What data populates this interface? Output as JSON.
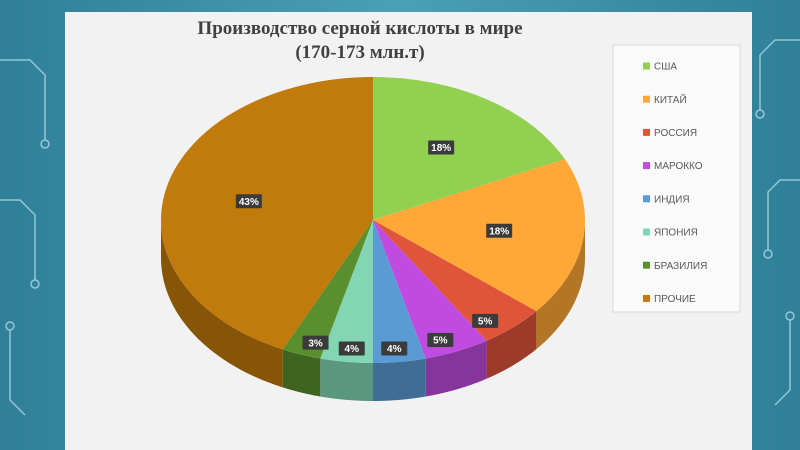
{
  "chart_data": {
    "type": "pie",
    "title": "Производство серной кислоты в мире",
    "subtitle": "(170-173 млн.т)",
    "categories": [
      "США",
      "КИТАЙ",
      "РОССИЯ",
      "МАРОККО",
      "ИНДИЯ",
      "ЯПОНИЯ",
      "БРАЗИЛИЯ",
      "ПРОЧИЕ"
    ],
    "values": [
      18,
      18,
      5,
      5,
      4,
      4,
      3,
      43
    ],
    "value_labels": [
      "18%",
      "18%",
      "5%",
      "5%",
      "4%",
      "4%",
      "3%",
      "43%"
    ],
    "colors": [
      "#92d050",
      "#ffa838",
      "#e0553a",
      "#c04be0",
      "#5b9bd5",
      "#82d6b4",
      "#5a8f2d",
      "#c17a0c"
    ],
    "legend": "right"
  }
}
